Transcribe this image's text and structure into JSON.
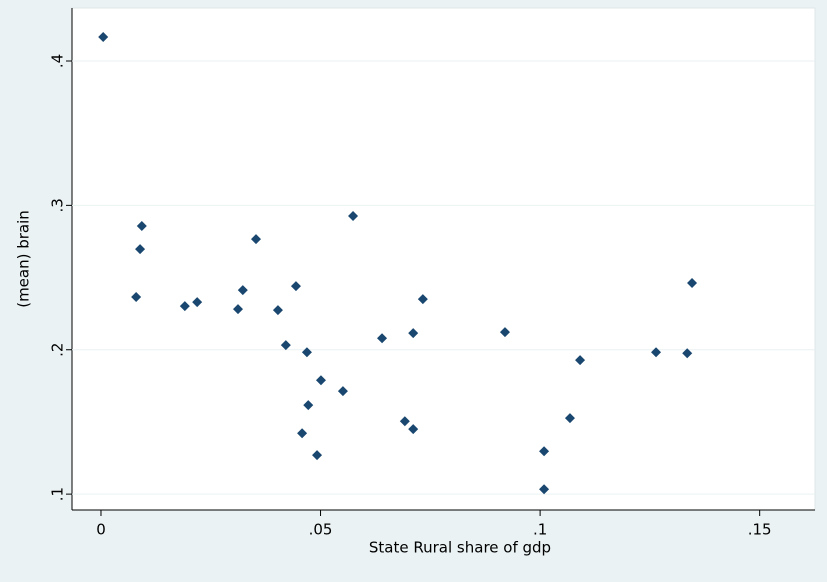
{
  "chart_data": {
    "type": "scatter",
    "x_label": "State Rural share of gdp",
    "y_label": "(mean) brain",
    "color": "#1a476f",
    "grid": true,
    "xlim": [
      -0.0066,
      0.1626
    ],
    "ylim": [
      0.089,
      0.4367
    ],
    "xticks": [
      0,
      {
        "value": 0.05,
        "label": ".05"
      },
      {
        "value": 0.1,
        "label": ".1"
      },
      {
        "value": 0.15,
        "label": ".15"
      }
    ],
    "yticks": [
      {
        "value": 0.1,
        "label": ".1"
      },
      {
        "value": 0.2,
        "label": ".2"
      },
      {
        "value": 0.3,
        "label": ".3"
      },
      {
        "value": 0.4,
        "label": ".4"
      }
    ],
    "x": [
      0.0005,
      0.0093,
      0.0089,
      0.008,
      0.0191,
      0.0219,
      0.0323,
      0.0353,
      0.0312,
      0.0403,
      0.0444,
      0.0421,
      0.0469,
      0.0501,
      0.0472,
      0.0458,
      0.0492,
      0.0551,
      0.0574,
      0.064,
      0.0711,
      0.0733,
      0.0692,
      0.0711,
      0.092,
      0.1009,
      0.1009,
      0.1068,
      0.1091,
      0.1264,
      0.1335,
      0.1346
    ],
    "values": [
      0.4166,
      0.2857,
      0.2697,
      0.2365,
      0.2302,
      0.233,
      0.2413,
      0.2766,
      0.2281,
      0.2274,
      0.2441,
      0.2032,
      0.1983,
      0.1789,
      0.1616,
      0.1422,
      0.127,
      0.1713,
      0.2926,
      0.208,
      0.2115,
      0.2351,
      0.1505,
      0.145,
      0.2122,
      0.1297,
      0.1034,
      0.1526,
      0.1928,
      0.1983,
      0.1976,
      0.2462
    ]
  }
}
